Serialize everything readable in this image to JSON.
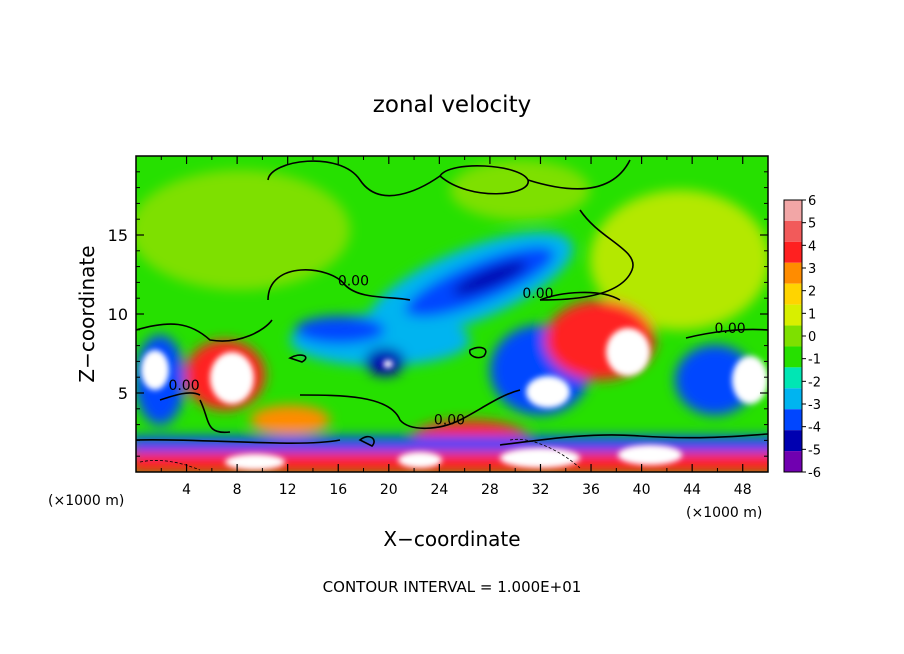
{
  "chart_data": {
    "type": "heatmap",
    "title": "zonal velocity",
    "xlabel": "X−coordinate",
    "ylabel": "Z−coordinate",
    "x_unit_left": "(×1000 m)",
    "x_unit_right": "(×1000 m)",
    "footer": "CONTOUR INTERVAL = 1.000E+01",
    "xlim": [
      0,
      50
    ],
    "ylim": [
      0,
      20
    ],
    "x_ticks": [
      4,
      8,
      12,
      16,
      20,
      24,
      28,
      32,
      36,
      40,
      44,
      48
    ],
    "y_ticks": [
      5,
      10,
      15
    ],
    "colorbar": {
      "levels": [
        6,
        5,
        4,
        3,
        2,
        1,
        0,
        -1,
        -2,
        -3,
        -4,
        -5,
        -6
      ],
      "colors": [
        "#f2a6a6",
        "#f25a5a",
        "#ff2020",
        "#ff8c00",
        "#ffd400",
        "#d8ef00",
        "#7ee000",
        "#26e000",
        "#00e6b4",
        "#00b4f0",
        "#0046ff",
        "#0000b0",
        "#7000b0"
      ]
    },
    "contour_labels": [
      {
        "x": 17.2,
        "z": 11.8,
        "text": "0.00"
      },
      {
        "x": 31.8,
        "z": 11.0,
        "text": "0.00"
      },
      {
        "x": 47.0,
        "z": 8.8,
        "text": "0.00"
      },
      {
        "x": 3.8,
        "z": 5.2,
        "text": "0.00"
      },
      {
        "x": 24.8,
        "z": 3.0,
        "text": "0.00"
      }
    ]
  }
}
